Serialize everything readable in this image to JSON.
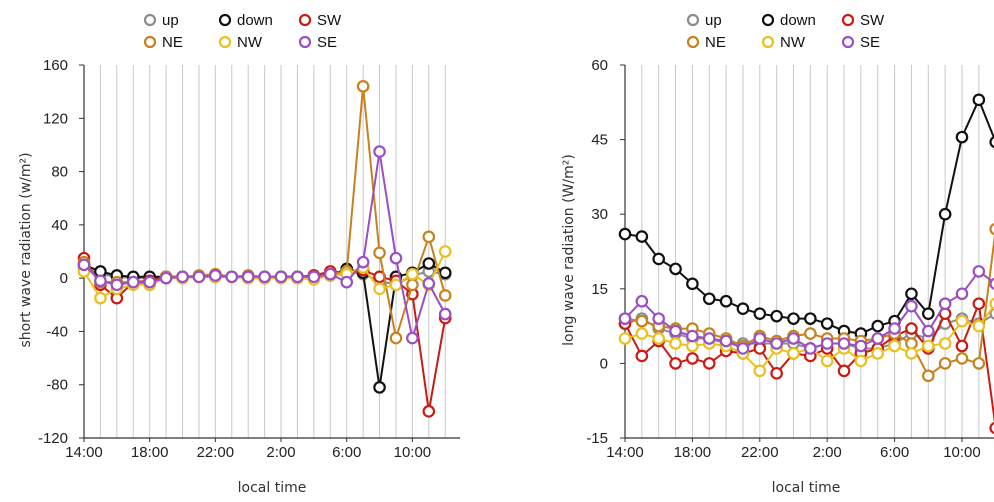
{
  "chart_data": [
    {
      "type": "line",
      "xlabel": "local time",
      "ylabel": "short wave radiation (w/m²)",
      "ylim": [
        -120,
        160
      ],
      "yticks": [
        -120,
        -80,
        -40,
        0,
        40,
        80,
        120,
        160
      ],
      "ytick_labels": [
        "-120",
        "-80",
        "-40",
        "0",
        "40",
        "80",
        "120",
        "160"
      ],
      "x_range_hours": [
        14,
        36.9
      ],
      "xtick_hours": [
        14,
        18,
        22,
        26,
        30,
        34
      ],
      "xtick_labels": [
        "14:00",
        "18:00",
        "22:00",
        "2:00",
        "6:00",
        "10:00"
      ],
      "x_hours": [
        14,
        15,
        16,
        17,
        18,
        19,
        20,
        21,
        22,
        23,
        24,
        25,
        26,
        27,
        28,
        29,
        30,
        31,
        32,
        33,
        34,
        35,
        36
      ],
      "legend": {
        "position": "top",
        "entries": [
          "up",
          "down",
          "SW",
          "NE",
          "NW",
          "SE"
        ]
      },
      "grid": "vertical",
      "series": [
        {
          "name": "up",
          "color": "#8c8c8c",
          "values": [
            8,
            3,
            1,
            0,
            0,
            1,
            0,
            1,
            1,
            1,
            0,
            0,
            1,
            1,
            2,
            3,
            5,
            3,
            -2,
            -5,
            2,
            5,
            3
          ]
        },
        {
          "name": "down",
          "color": "#111111",
          "values": [
            10,
            5,
            2,
            1,
            1,
            1,
            1,
            1,
            1,
            1,
            1,
            1,
            1,
            1,
            1,
            2,
            7,
            4,
            -82,
            1,
            4,
            11,
            4
          ]
        },
        {
          "name": "SW",
          "color": "#cc1a12",
          "values": [
            15,
            -5,
            -15,
            -3,
            -2,
            1,
            1,
            1,
            2,
            1,
            1,
            0,
            1,
            1,
            2,
            5,
            4,
            6,
            1,
            -2,
            -12,
            -100,
            -30
          ]
        },
        {
          "name": "NE",
          "color": "#c8821d",
          "values": [
            12,
            -3,
            -3,
            -3,
            -5,
            1,
            1,
            2,
            3,
            1,
            2,
            1,
            1,
            0,
            1,
            3,
            5,
            144,
            19,
            -45,
            -5,
            31,
            -13
          ]
        },
        {
          "name": "NW",
          "color": "#e9c020",
          "values": [
            5,
            -15,
            -8,
            -5,
            -5,
            0,
            0,
            1,
            1,
            1,
            0,
            0,
            0,
            0,
            -1,
            2,
            3,
            8,
            -8,
            -5,
            3,
            -5,
            20
          ]
        },
        {
          "name": "SE",
          "color": "#9b4fc4",
          "values": [
            10,
            -2,
            -5,
            -3,
            -3,
            0,
            1,
            1,
            2,
            1,
            1,
            1,
            1,
            1,
            1,
            3,
            -3,
            12,
            95,
            15,
            -45,
            -4,
            -27
          ]
        }
      ]
    },
    {
      "type": "line",
      "xlabel": "local time",
      "ylabel": "long wave radiation (W/m²)",
      "ylim": [
        -15,
        60
      ],
      "yticks": [
        -15,
        0,
        15,
        30,
        45,
        60
      ],
      "ytick_labels": [
        "-15",
        "0",
        "15",
        "30",
        "45",
        "60"
      ],
      "x_range_hours": [
        14,
        35.9
      ],
      "xtick_hours": [
        14,
        18,
        22,
        26,
        30,
        34
      ],
      "xtick_labels": [
        "14:00",
        "18:00",
        "22:00",
        "2:00",
        "6:00",
        "10:00"
      ],
      "x_hours": [
        14,
        15,
        16,
        17,
        18,
        19,
        20,
        21,
        22,
        23,
        24,
        25,
        26,
        27,
        28,
        29,
        30,
        31,
        32,
        33,
        34,
        35,
        36
      ],
      "legend": {
        "position": "top",
        "entries": [
          "up",
          "down",
          "SW",
          "NE",
          "NW",
          "SE"
        ]
      },
      "grid": "vertical",
      "series": [
        {
          "name": "up",
          "color": "#8c8c8c",
          "values": [
            8,
            9,
            7,
            6,
            5,
            5,
            4,
            4,
            4,
            4,
            4,
            3,
            4,
            4,
            3,
            3,
            4,
            6,
            5,
            8,
            9,
            8,
            10
          ]
        },
        {
          "name": "down",
          "color": "#111111",
          "values": [
            26,
            25.5,
            21,
            19,
            16,
            13,
            12.5,
            11,
            10,
            9.5,
            9,
            9,
            8,
            6.5,
            6,
            7.5,
            8.5,
            14,
            10,
            30,
            45.5,
            53,
            44.5
          ]
        },
        {
          "name": "SW",
          "color": "#cc1a12",
          "values": [
            8,
            1.5,
            4.5,
            0,
            1,
            0,
            2.5,
            2,
            3,
            -2,
            2,
            1.5,
            3,
            -1.5,
            2,
            3,
            5.5,
            7,
            3,
            10,
            3.5,
            12,
            -13
          ]
        },
        {
          "name": "NE",
          "color": "#c8821d",
          "values": [
            9,
            8.5,
            7.5,
            7,
            7,
            6,
            5,
            3.5,
            5.5,
            4.5,
            5.5,
            6,
            5,
            5,
            4.5,
            5,
            6,
            4,
            -2.5,
            0,
            1,
            0,
            27
          ]
        },
        {
          "name": "NW",
          "color": "#e9c020",
          "values": [
            5,
            6,
            5,
            4,
            3.5,
            4,
            3.5,
            2,
            -1.5,
            3,
            2,
            3,
            0.5,
            3,
            0.5,
            2,
            3.5,
            2,
            3.5,
            4,
            8.5,
            7.5,
            12
          ]
        },
        {
          "name": "SE",
          "color": "#9b4fc4",
          "values": [
            9,
            12.5,
            9,
            6.5,
            5.5,
            5,
            4.5,
            3,
            5,
            4,
            5,
            3,
            4,
            4,
            3.5,
            5,
            7,
            11.5,
            6.5,
            12,
            14,
            18.5,
            16
          ]
        }
      ]
    }
  ]
}
